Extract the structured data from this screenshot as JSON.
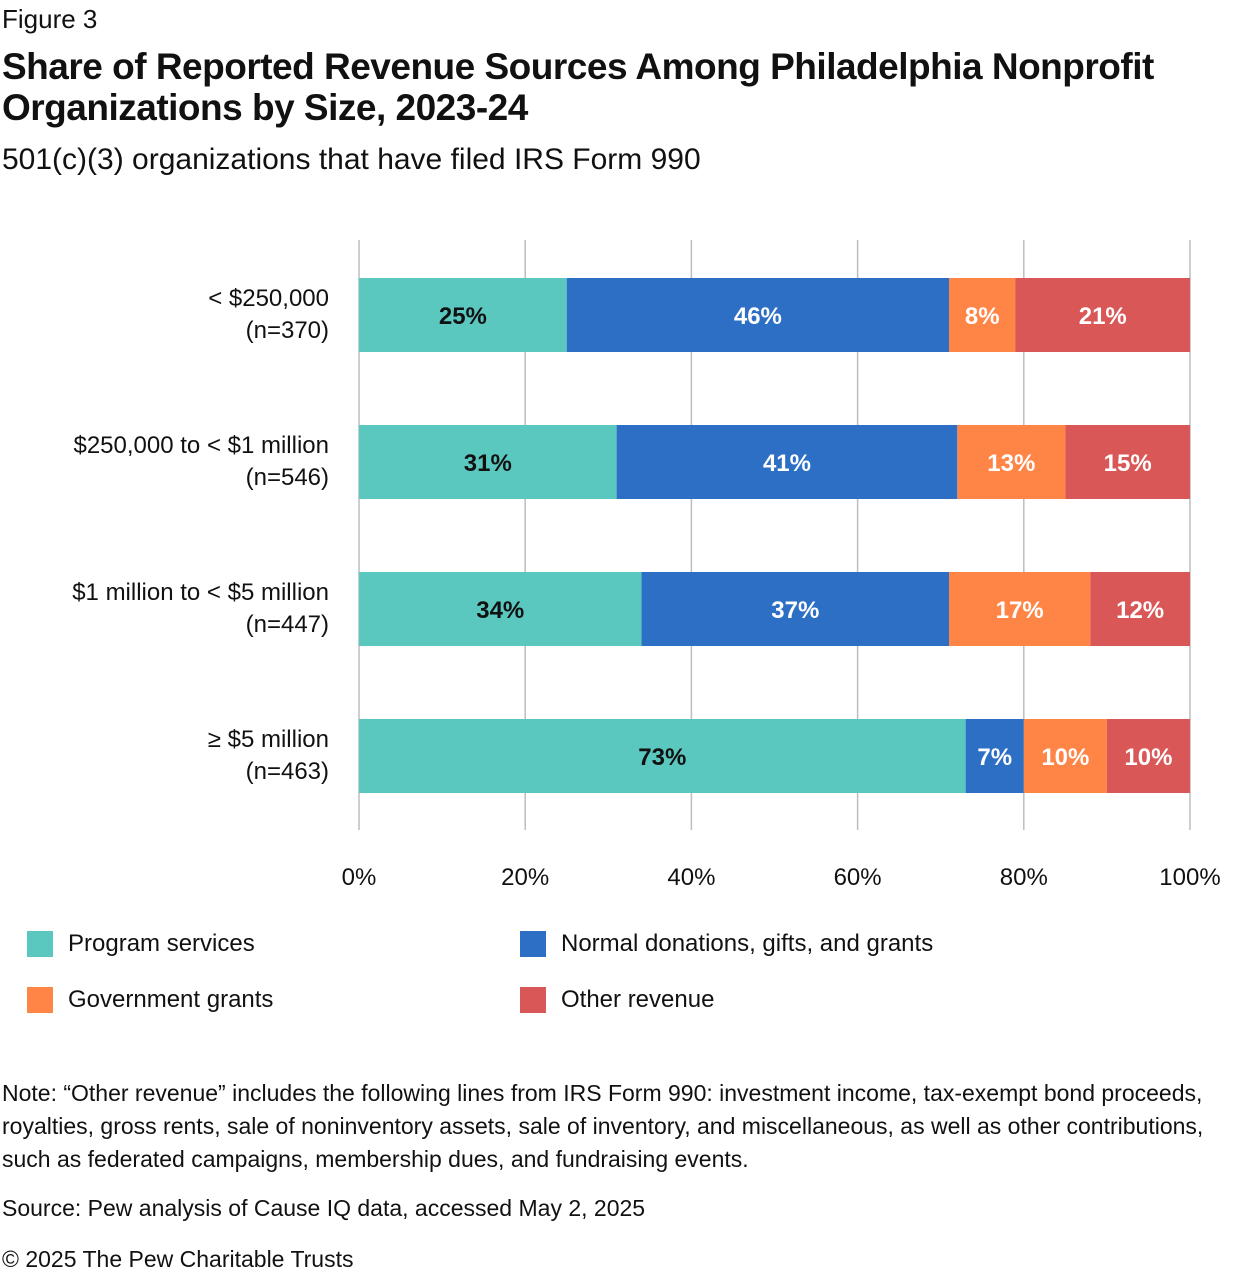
{
  "figure_label": "Figure 3",
  "title": "Share of Reported Revenue Sources Among Philadelphia Nonprofit Organizations by Size, 2023-24",
  "subtitle": "501(c)(3) organizations that have filed IRS Form 990",
  "chart_data": {
    "type": "bar",
    "orientation": "horizontal",
    "stacked": true,
    "categories": [
      [
        "< $250,000",
        "(n=370)"
      ],
      [
        "$250,000 to < $1 million",
        "(n=546)"
      ],
      [
        "$1 million to < $5 million",
        "(n=447)"
      ],
      [
        "≥ $5 million",
        "(n=463)"
      ]
    ],
    "series": [
      {
        "name": "Program services",
        "color": "#5bc8c0",
        "label_color": "#111111",
        "values": [
          25,
          31,
          34,
          73
        ]
      },
      {
        "name": "Normal donations, gifts, and grants",
        "color": "#2d6fc4",
        "label_color": "#ffffff",
        "values": [
          46,
          41,
          37,
          7
        ]
      },
      {
        "name": "Government grants",
        "color": "#ff8547",
        "label_color": "#ffffff",
        "values": [
          8,
          13,
          17,
          10
        ]
      },
      {
        "name": "Other revenue",
        "color": "#d95757",
        "label_color": "#ffffff",
        "values": [
          21,
          15,
          12,
          10
        ]
      }
    ],
    "xlim": [
      0,
      100
    ],
    "xticks": [
      "0%",
      "20%",
      "40%",
      "60%",
      "80%",
      "100%"
    ],
    "xtick_values": [
      0,
      20,
      40,
      60,
      80,
      100
    ],
    "grid": "vertical",
    "legend_position": "bottom"
  },
  "note": "Note: “Other revenue” includes the following lines from IRS Form 990: investment income, tax-exempt bond proceeds, royalties, gross rents, sale of noninventory assets, sale of inventory, and miscellaneous, as well as other contributions, such as federated campaigns, membership dues, and fundraising events.",
  "source": "Source: Pew analysis of Cause IQ data, accessed May 2, 2025",
  "copyright": "© 2025 The Pew Charitable Trusts"
}
